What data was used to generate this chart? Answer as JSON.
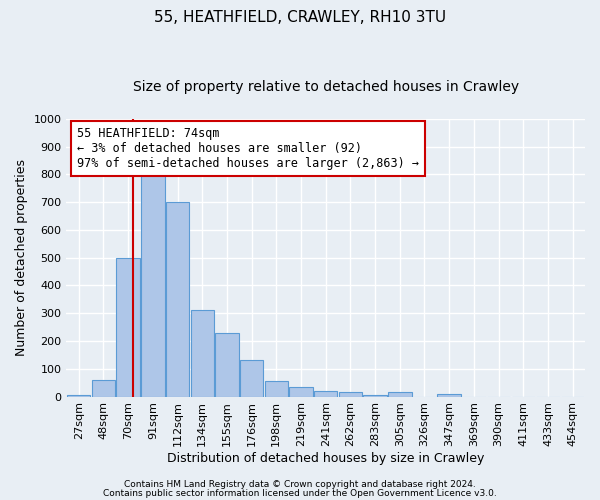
{
  "title1": "55, HEATHFIELD, CRAWLEY, RH10 3TU",
  "title2": "Size of property relative to detached houses in Crawley",
  "xlabel": "Distribution of detached houses by size in Crawley",
  "ylabel": "Number of detached properties",
  "bar_labels": [
    "27sqm",
    "48sqm",
    "70sqm",
    "91sqm",
    "112sqm",
    "134sqm",
    "155sqm",
    "176sqm",
    "198sqm",
    "219sqm",
    "241sqm",
    "262sqm",
    "283sqm",
    "305sqm",
    "326sqm",
    "347sqm",
    "369sqm",
    "390sqm",
    "411sqm",
    "433sqm",
    "454sqm"
  ],
  "bar_values": [
    5,
    60,
    500,
    820,
    700,
    310,
    230,
    130,
    55,
    35,
    20,
    15,
    5,
    15,
    0,
    10,
    0,
    0,
    0,
    0,
    0
  ],
  "bar_color": "#aec6e8",
  "bar_edge_color": "#5b9bd5",
  "background_color": "#e8eef4",
  "grid_color": "#ffffff",
  "ylim": [
    0,
    1000
  ],
  "yticks": [
    0,
    100,
    200,
    300,
    400,
    500,
    600,
    700,
    800,
    900,
    1000
  ],
  "red_line_x": 2.18,
  "annotation_text": "55 HEATHFIELD: 74sqm\n← 3% of detached houses are smaller (92)\n97% of semi-detached houses are larger (2,863) →",
  "annotation_box_color": "#ffffff",
  "annotation_border_color": "#cc0000",
  "footer1": "Contains HM Land Registry data © Crown copyright and database right 2024.",
  "footer2": "Contains public sector information licensed under the Open Government Licence v3.0.",
  "title_fontsize": 11,
  "subtitle_fontsize": 10,
  "tick_fontsize": 8,
  "ylabel_fontsize": 9,
  "xlabel_fontsize": 9,
  "annotation_fontsize": 8.5,
  "footer_fontsize": 6.5
}
